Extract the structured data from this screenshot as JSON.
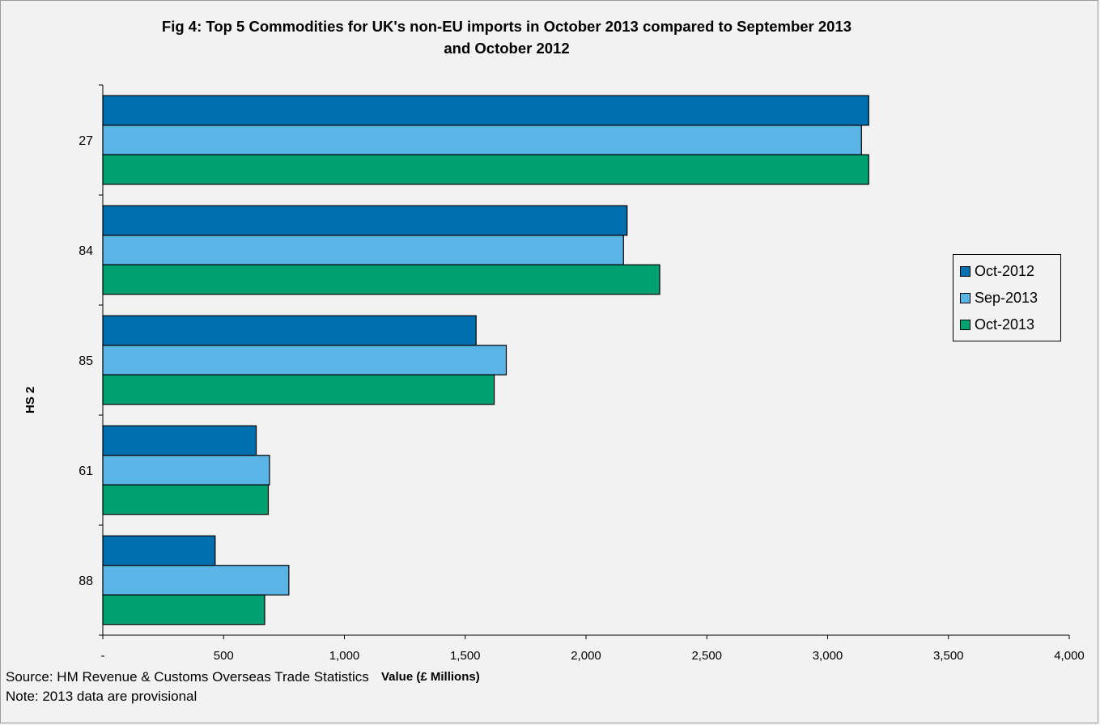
{
  "chart_data": {
    "type": "bar",
    "orientation": "horizontal",
    "title_line1": "Fig 4: Top 5 Commodities for UK's non-EU imports in October 2013 compared to September 2013",
    "title_line2": "and October 2012",
    "xlabel": "Value (£ Millions)",
    "ylabel": "HS 2",
    "categories": [
      "27",
      "84",
      "85",
      "61",
      "88"
    ],
    "series": [
      {
        "name": "Oct-2012",
        "color": "#0070b0",
        "values": [
          3170,
          2170,
          1545,
          635,
          465
        ]
      },
      {
        "name": "Sep-2013",
        "color": "#5ab4e6",
        "values": [
          3140,
          2155,
          1670,
          690,
          770
        ]
      },
      {
        "name": "Oct-2013",
        "color": "#00a070",
        "values": [
          3170,
          2305,
          1620,
          685,
          670
        ]
      }
    ],
    "xlim": [
      0,
      4000
    ],
    "xticks": [
      0,
      500,
      1000,
      1500,
      2000,
      2500,
      3000,
      3500,
      4000
    ],
    "xtick_labels": [
      "-",
      "500",
      "1,000",
      "1,500",
      "2,000",
      "2,500",
      "3,000",
      "3,500",
      "4,000"
    ],
    "grid": false,
    "legend_position": "right"
  },
  "footer": {
    "source": "Source: HM Revenue & Customs Overseas Trade Statistics",
    "note": "Note: 2013 data are provisional"
  }
}
